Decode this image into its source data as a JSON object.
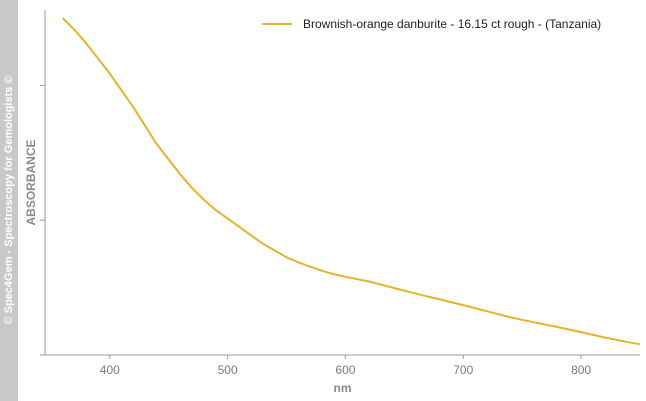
{
  "watermark": "© Spec4Gem - Spectroscopy for Gemologists ©",
  "chart_data": {
    "type": "line",
    "xlabel": "nm",
    "ylabel": "ABSORBANCE",
    "xlim": [
      345,
      850
    ],
    "ylim": [
      0,
      1
    ],
    "x_ticks": [
      400,
      500,
      600,
      700,
      800
    ],
    "x_tick_labels": [
      "400",
      "500",
      "600",
      "700",
      "800"
    ],
    "y_ticks": [
      0,
      0.4,
      0.8
    ],
    "y_tick_labels": [
      "",
      "",
      ""
    ],
    "grid": false,
    "legend_position": "top-right",
    "series": [
      {
        "name": "Brownish-orange danburite - 16.15 ct rough - (Tanzania)",
        "color": "#e2b52a",
        "x": [
          360,
          370,
          380,
          390,
          400,
          410,
          420,
          430,
          440,
          450,
          460,
          470,
          480,
          490,
          500,
          510,
          520,
          530,
          540,
          550,
          560,
          570,
          580,
          590,
          600,
          620,
          640,
          660,
          680,
          700,
          720,
          740,
          760,
          780,
          800,
          820,
          840,
          850
        ],
        "values": [
          1.0,
          0.965,
          0.925,
          0.88,
          0.835,
          0.785,
          0.735,
          0.68,
          0.625,
          0.58,
          0.535,
          0.495,
          0.46,
          0.43,
          0.405,
          0.38,
          0.355,
          0.33,
          0.31,
          0.29,
          0.275,
          0.262,
          0.25,
          0.24,
          0.232,
          0.218,
          0.2,
          0.182,
          0.165,
          0.148,
          0.13,
          0.112,
          0.097,
          0.083,
          0.068,
          0.052,
          0.038,
          0.032
        ]
      }
    ]
  }
}
